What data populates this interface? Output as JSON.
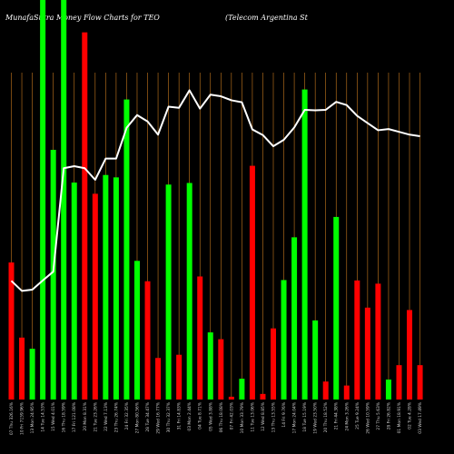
{
  "chart_data": {
    "type": "bar",
    "title": "MunafaSutra Money Flow  Charts for TEO",
    "subtitle": "(Telecom Argentina  St",
    "colors": {
      "background": "#000000",
      "up": "#00ff00",
      "down": "#ff0000",
      "grid": "#c87a1e",
      "line": "#ffffff",
      "text": "#ffffff"
    },
    "ylim": [
      0,
      100
    ],
    "categories": [
      "07 Thu 326.16%",
      "10 Fri 7159.96%",
      "13 Mon 24.95%",
      "14 Tue 14.53%",
      "15 Wed 4.01%",
      "16 Thu 18.59%",
      "17 Fri 121.08%",
      "20 Mon 8.31%",
      "21 Tue 23.26%",
      "22 Wed 7.13%",
      "23 Thu 26.74%",
      "24 Fri 32.35%",
      "27 Mon 80.56%",
      "28 Tue 34.47%",
      "29 Wed 16.77%",
      "30 Thu 32.37%",
      "31 Fri 14.83%",
      "03 Mon 2.44%",
      "04 Tue 8.71%",
      "05 Wed 3.88%",
      "06 Thu 18.08%",
      "07 Fri 42.03%",
      "10 Mon 33.79%",
      "11 Tue 13.06%",
      "12 Wed 8.85%",
      "13 Thu 13.55%",
      "14 Fri 9.76%",
      "17 Mon 24.04%",
      "18 Tue 15.19%",
      "19 Wed 23.50%",
      "20 Thu 18.52%",
      "21 Fri 44.38%",
      "24 Mon 3.26%",
      "25 Tue 9.24%",
      "26 Wed 10.59%",
      "27 Thu 5.63%",
      "28 Fri 26.82%",
      "01 Mon 18.91%",
      "02 Tue 4.28%",
      "03 Wed 17.49%"
    ],
    "series": [
      {
        "values": [
          34.3,
          15.5,
          12.7,
          100,
          62.5,
          100,
          54.3,
          91.9,
          51.5,
          56.2,
          55.6,
          75.1,
          34.7,
          29.6,
          10.4,
          53.8,
          11.2,
          54.2,
          30.8,
          16.8,
          15.1,
          0.7,
          5.2,
          58.5,
          1.4,
          17.8,
          29.9,
          40.6,
          77.6,
          19.8,
          4.5,
          45.7,
          3.5,
          29.8,
          23.0,
          29.0,
          5.0,
          8.6,
          22.4,
          8.6
        ],
        "colors": [
          "down",
          "down",
          "up",
          "up",
          "up",
          "up",
          "up",
          "down",
          "down",
          "up",
          "up",
          "up",
          "up",
          "down",
          "down",
          "up",
          "down",
          "up",
          "down",
          "up",
          "down",
          "down",
          "up",
          "down",
          "down",
          "down",
          "up",
          "up",
          "up",
          "up",
          "down",
          "up",
          "down",
          "down",
          "down",
          "down",
          "up",
          "down",
          "down",
          "down"
        ]
      }
    ],
    "line_values": [
      29.7,
      27.2,
      27.5,
      29.8,
      32.0,
      57.9,
      58.4,
      57.9,
      55.0,
      60.3,
      60.3,
      68.0,
      71.2,
      69.6,
      66.3,
      73.3,
      73.0,
      77.4,
      72.8,
      76.3,
      75.9,
      74.9,
      74.4,
      67.6,
      66.2,
      63.4,
      65.0,
      68.1,
      72.5,
      72.4,
      72.5,
      74.5,
      73.7,
      71.0,
      69.2,
      67.4,
      67.7,
      67.0,
      66.3,
      65.9
    ]
  }
}
